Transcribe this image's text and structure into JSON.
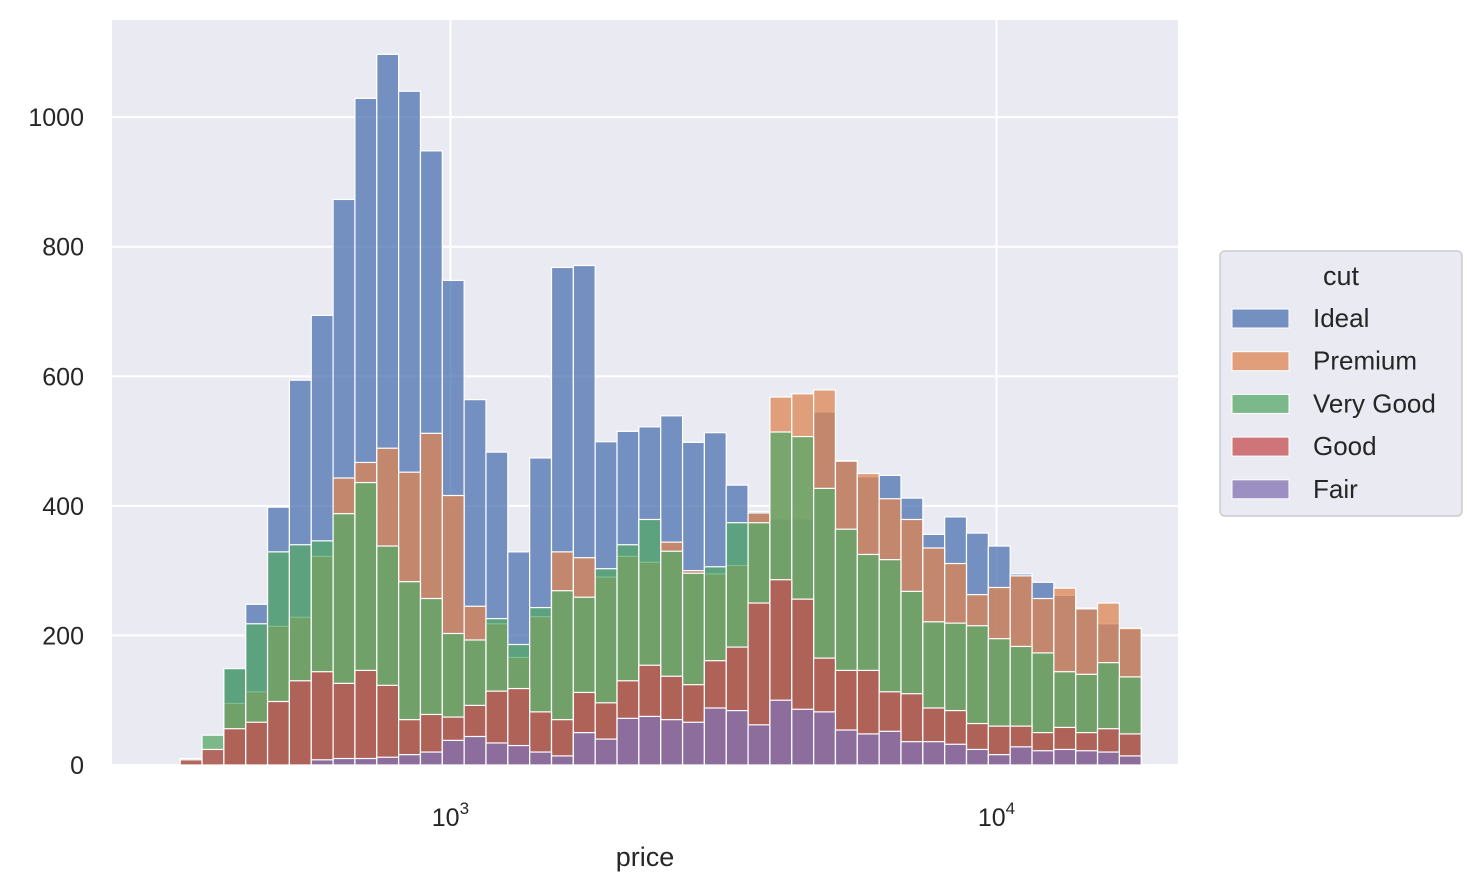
{
  "chart_data": {
    "type": "bar",
    "subtype": "overlapping-histogram",
    "xlabel": "price",
    "ylabel": "",
    "xscale": "log",
    "xlim": [
      240,
      21500
    ],
    "ylim": [
      0,
      1150
    ],
    "grid": true,
    "yticks": [
      0,
      200,
      400,
      600,
      800,
      1000
    ],
    "xticks": [
      {
        "value": 1000,
        "base": "10",
        "exp": "3"
      },
      {
        "value": 10000,
        "base": "10",
        "exp": "4"
      }
    ],
    "legend": {
      "title": "cut",
      "position": "center-right"
    },
    "bin_edges_log10": [
      2.5051,
      2.5451,
      2.5851,
      2.6251,
      2.6651,
      2.7051,
      2.7451,
      2.7851,
      2.8251,
      2.8651,
      2.9051,
      2.9451,
      2.9851,
      3.0251,
      3.0651,
      3.1051,
      3.1451,
      3.1851,
      3.2251,
      3.2651,
      3.3051,
      3.3451,
      3.3851,
      3.4251,
      3.4651,
      3.5051,
      3.5451,
      3.5851,
      3.6251,
      3.6651,
      3.7051,
      3.7451,
      3.7851,
      3.8251,
      3.8651,
      3.9051,
      3.9451,
      3.9851,
      4.0251,
      4.0651,
      4.1051,
      4.1451,
      4.1851,
      4.2251,
      4.2651
    ],
    "series": [
      {
        "name": "Ideal",
        "color": "#4c72b0",
        "values": [
          5,
          5,
          148,
          248,
          398,
          594,
          694,
          873,
          1029,
          1097,
          1040,
          948,
          748,
          564,
          483,
          329,
          474,
          768,
          771,
          499,
          515,
          522,
          539,
          498,
          513,
          432,
          391,
          380,
          380,
          545,
          470,
          445,
          447,
          412,
          356,
          383,
          358,
          338,
          295,
          282,
          262,
          242,
          218,
          210
        ]
      },
      {
        "name": "Premium",
        "color": "#dd8452",
        "values": [
          3,
          3,
          95,
          113,
          214,
          228,
          322,
          443,
          467,
          489,
          452,
          512,
          416,
          245,
          218,
          166,
          229,
          329,
          320,
          290,
          322,
          313,
          344,
          300,
          295,
          308,
          389,
          568,
          573,
          579,
          469,
          450,
          411,
          379,
          335,
          311,
          263,
          274,
          292,
          257,
          273,
          241,
          250,
          211
        ]
      },
      {
        "name": "Very Good",
        "color": "#55a868",
        "values": [
          10,
          46,
          149,
          218,
          329,
          340,
          346,
          388,
          436,
          338,
          283,
          257,
          203,
          193,
          226,
          186,
          243,
          269,
          259,
          303,
          340,
          379,
          330,
          296,
          306,
          374,
          374,
          514,
          507,
          427,
          364,
          325,
          317,
          268,
          221,
          219,
          215,
          195,
          183,
          173,
          144,
          140,
          158,
          136
        ]
      },
      {
        "name": "Good",
        "color": "#c44e52",
        "values": [
          8,
          24,
          56,
          66,
          98,
          130,
          144,
          126,
          146,
          123,
          70,
          78,
          74,
          92,
          114,
          118,
          82,
          70,
          112,
          96,
          130,
          154,
          137,
          124,
          161,
          182,
          250,
          286,
          256,
          165,
          146,
          146,
          113,
          110,
          88,
          84,
          64,
          60,
          60,
          50,
          58,
          50,
          56,
          48
        ]
      },
      {
        "name": "Fair",
        "color": "#8172b3",
        "values": [
          0,
          0,
          0,
          0,
          0,
          0,
          8,
          10,
          10,
          12,
          16,
          20,
          38,
          44,
          34,
          30,
          20,
          14,
          50,
          40,
          72,
          75,
          70,
          66,
          88,
          84,
          62,
          100,
          86,
          82,
          54,
          48,
          52,
          36,
          36,
          32,
          24,
          16,
          28,
          22,
          24,
          22,
          20,
          14
        ]
      }
    ]
  }
}
